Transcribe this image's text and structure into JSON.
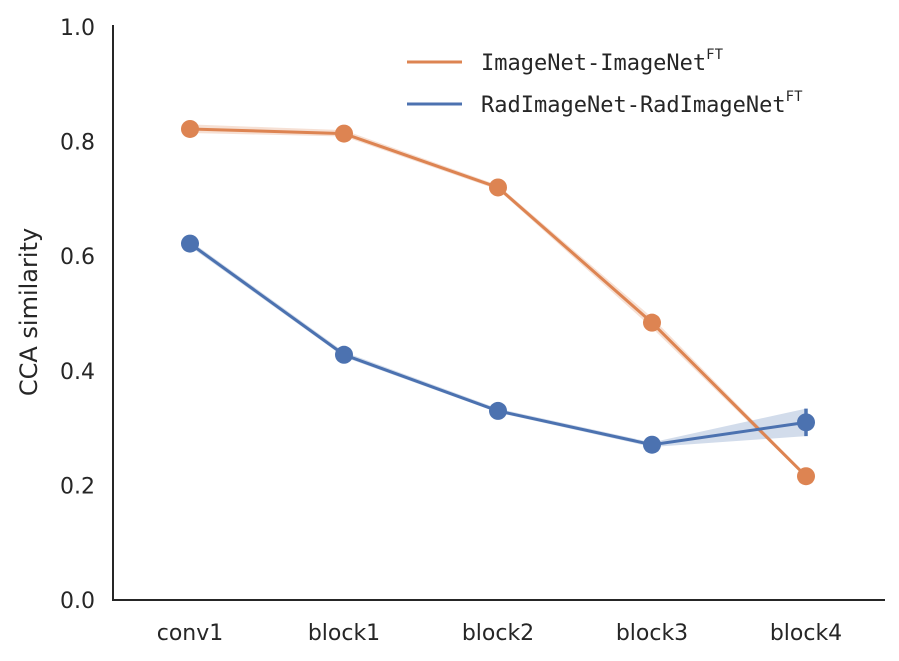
{
  "chart_data": {
    "type": "line",
    "ylabel": "CCA similarity",
    "categories": [
      "conv1",
      "block1",
      "block2",
      "block3",
      "block4"
    ],
    "yticks": [
      "0.0",
      "0.2",
      "0.4",
      "0.6",
      "0.8",
      "1.0"
    ],
    "ylim": [
      0,
      1
    ],
    "grid": false,
    "legend_position": "top-right",
    "series": [
      {
        "name": "ImageNet-ImageNet",
        "name_sup": "FT",
        "color": "#dd8452",
        "values": [
          0.822,
          0.814,
          0.72,
          0.484,
          0.216
        ],
        "band_low": [
          0.815,
          0.809,
          0.716,
          0.475,
          0.213
        ],
        "band_high": [
          0.83,
          0.82,
          0.724,
          0.493,
          0.219
        ],
        "err": [
          0,
          0,
          0,
          0,
          0
        ]
      },
      {
        "name": "RadImageNet-RadImageNet",
        "name_sup": "FT",
        "color": "#4c72b0",
        "values": [
          0.622,
          0.428,
          0.33,
          0.271,
          0.31
        ],
        "band_low": [
          0.617,
          0.424,
          0.327,
          0.267,
          0.286
        ],
        "band_high": [
          0.627,
          0.433,
          0.334,
          0.275,
          0.334
        ],
        "err": [
          0,
          0,
          0,
          0,
          0.024
        ]
      }
    ]
  }
}
